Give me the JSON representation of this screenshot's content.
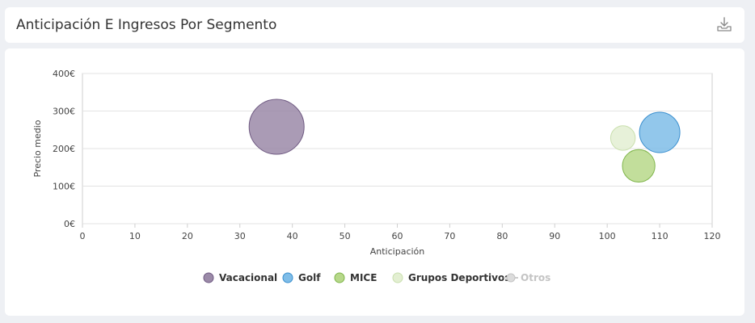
{
  "header": {
    "title": "Anticipación E Ingresos Por Segmento",
    "download_icon": "download-icon"
  },
  "chart_data": {
    "type": "scatter",
    "subtype": "bubble",
    "title": "",
    "xlabel": "Anticipación",
    "ylabel": "Precio medio",
    "xlim": [
      0,
      120
    ],
    "ylim": [
      0,
      400
    ],
    "x_ticks": [
      "0",
      "10",
      "20",
      "30",
      "40",
      "50",
      "60",
      "70",
      "80",
      "90",
      "100",
      "110",
      "120"
    ],
    "y_ticks": [
      "0€",
      "100€",
      "200€",
      "300€",
      "400€"
    ],
    "grid": true,
    "legend_position": "bottom-center",
    "series": [
      {
        "name": "Vacacional",
        "color": "#9b8aa8",
        "stroke": "#6f5a82",
        "points": [
          {
            "x": 37,
            "y": 258,
            "size": 1.0
          }
        ],
        "visible": true
      },
      {
        "name": "Golf",
        "color": "#7fbde8",
        "stroke": "#3a8fcf",
        "points": [
          {
            "x": 110,
            "y": 243,
            "size": 0.54
          }
        ],
        "visible": true
      },
      {
        "name": "MICE",
        "color": "#b7d88a",
        "stroke": "#7fb54a",
        "points": [
          {
            "x": 106,
            "y": 154,
            "size": 0.35
          }
        ],
        "visible": true
      },
      {
        "name": "Grupos Deportivos",
        "color": "#e3efd2",
        "stroke": "#c9dfae",
        "points": [
          {
            "x": 103,
            "y": 228,
            "size": 0.2
          }
        ],
        "visible": true
      },
      {
        "name": "Otros",
        "color": "#d9d9d9",
        "stroke": "#c4c4c4",
        "points": [],
        "visible": false
      }
    ]
  }
}
